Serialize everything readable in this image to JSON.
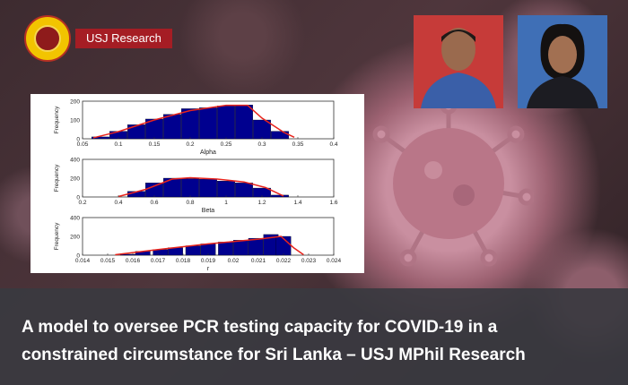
{
  "header": {
    "brand_label": "USJ Research"
  },
  "headline": {
    "line1": "A model to oversee PCR testing capacity for COVID-19 in a",
    "line2": "constrained circumstance for Sri Lanka – USJ MPhil Research"
  },
  "colors": {
    "brand_red": "#a51d24",
    "logo_yellow": "#f2c400",
    "bar_fill": "#00008f",
    "curve": "#e8241c"
  },
  "icons": {
    "logo": "university-seal-icon",
    "virus": "coronavirus-icon"
  },
  "chart_data": [
    {
      "type": "bar",
      "xlabel": "Alpha",
      "ylabel": "Frequency",
      "xlim": [
        0.05,
        0.4
      ],
      "ylim": [
        0,
        200
      ],
      "xticks": [
        "0.05",
        "0.1",
        "0.15",
        "0.2",
        "0.25",
        "0.3",
        "0.35",
        "0.4"
      ],
      "yticks": [
        "0",
        "100",
        "200"
      ],
      "x": [
        0.075,
        0.1,
        0.125,
        0.15,
        0.175,
        0.2,
        0.225,
        0.25,
        0.275,
        0.3,
        0.325
      ],
      "values": [
        10,
        40,
        75,
        105,
        130,
        160,
        165,
        175,
        180,
        100,
        40
      ],
      "curve": [
        [
          0.065,
          5
        ],
        [
          0.1,
          38
        ],
        [
          0.15,
          100
        ],
        [
          0.2,
          150
        ],
        [
          0.25,
          178
        ],
        [
          0.28,
          178
        ],
        [
          0.3,
          110
        ],
        [
          0.33,
          35
        ],
        [
          0.345,
          8
        ]
      ]
    },
    {
      "type": "bar",
      "xlabel": "Beta",
      "ylabel": "Frequency",
      "xlim": [
        0.2,
        1.6
      ],
      "ylim": [
        0,
        400
      ],
      "xticks": [
        "0.2",
        "0.4",
        "0.6",
        "0.8",
        "1",
        "1.2",
        "1.4",
        "1.6"
      ],
      "yticks": [
        "0",
        "200",
        "400"
      ],
      "x": [
        0.5,
        0.6,
        0.7,
        0.8,
        0.9,
        1.0,
        1.1,
        1.2,
        1.3
      ],
      "values": [
        60,
        150,
        200,
        195,
        190,
        170,
        150,
        95,
        20
      ],
      "curve": [
        [
          0.4,
          5
        ],
        [
          0.55,
          80
        ],
        [
          0.7,
          190
        ],
        [
          0.8,
          205
        ],
        [
          0.95,
          190
        ],
        [
          1.1,
          160
        ],
        [
          1.22,
          100
        ],
        [
          1.32,
          10
        ]
      ]
    },
    {
      "type": "bar",
      "xlabel": "r",
      "ylabel": "Frequency",
      "xlim": [
        0.014,
        0.024
      ],
      "ylim": [
        0,
        400
      ],
      "xticks": [
        "0.014",
        "0.015",
        "0.016",
        "0.017",
        "0.018",
        "0.019",
        "0.02",
        "0.021",
        "0.022",
        "0.023",
        "0.024"
      ],
      "yticks": [
        "0",
        "200",
        "400"
      ],
      "x": [
        0.0158,
        0.0164,
        0.0171,
        0.0177,
        0.0184,
        0.019,
        0.0197,
        0.0203,
        0.0209,
        0.0215,
        0.022
      ],
      "values": [
        10,
        40,
        60,
        80,
        100,
        120,
        140,
        160,
        180,
        220,
        200
      ],
      "curve": [
        [
          0.0153,
          5
        ],
        [
          0.017,
          60
        ],
        [
          0.019,
          120
        ],
        [
          0.021,
          170
        ],
        [
          0.0219,
          200
        ],
        [
          0.0224,
          80
        ],
        [
          0.0228,
          5
        ]
      ]
    }
  ]
}
